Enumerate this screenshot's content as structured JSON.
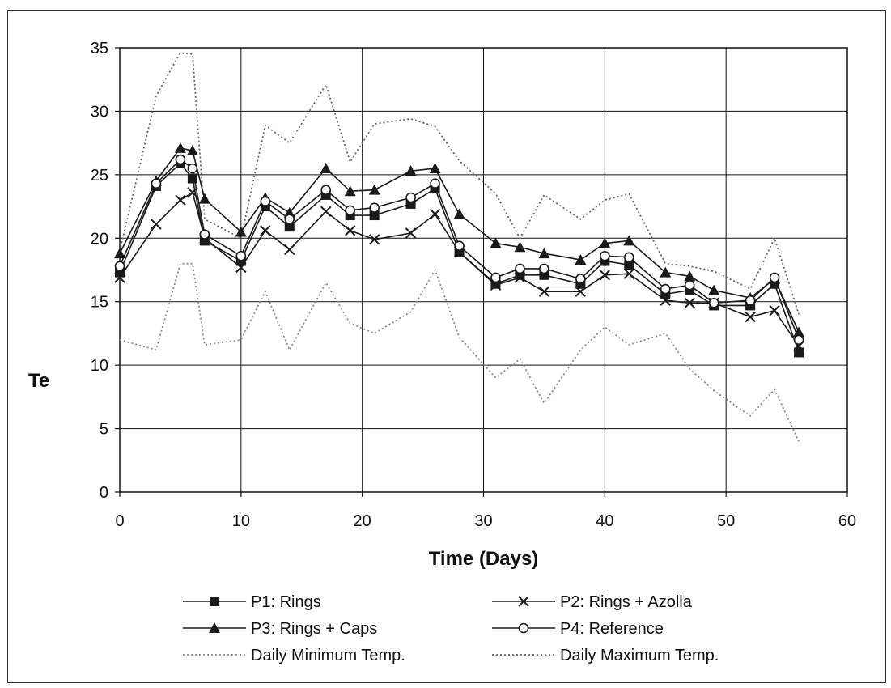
{
  "chart_data": {
    "type": "line",
    "title": "",
    "xlabel": "Time (Days)",
    "ylabel": "Te",
    "xlim": [
      0,
      60
    ],
    "ylim": [
      0,
      35
    ],
    "xticks": [
      0,
      10,
      20,
      30,
      40,
      50,
      60
    ],
    "yticks": [
      0,
      5,
      10,
      15,
      20,
      25,
      30,
      35
    ],
    "grid": true,
    "legend_position": "bottom",
    "series": [
      {
        "name": "P1: Rings",
        "marker": "square",
        "style": "solid",
        "color": "#1a1a1a",
        "x": [
          0,
          3,
          5,
          6,
          7,
          10,
          12,
          14,
          17,
          19,
          21,
          24,
          26,
          28,
          31,
          33,
          35,
          38,
          40,
          42,
          45,
          47,
          49,
          52,
          54,
          56
        ],
        "y": [
          17.3,
          24.1,
          25.9,
          24.7,
          19.8,
          18.2,
          22.5,
          20.9,
          23.4,
          21.8,
          21.8,
          22.7,
          23.9,
          18.9,
          16.4,
          17.1,
          17.1,
          16.4,
          18.2,
          17.9,
          15.6,
          15.9,
          14.7,
          14.7,
          16.4,
          11.0
        ]
      },
      {
        "name": "P2: Rings + Azolla",
        "marker": "x",
        "style": "solid",
        "color": "#1a1a1a",
        "x": [
          0,
          3,
          5,
          6,
          7,
          10,
          12,
          14,
          17,
          19,
          21,
          24,
          26,
          28,
          31,
          33,
          35,
          38,
          40,
          42,
          45,
          47,
          49,
          52,
          54,
          56
        ],
        "y": [
          16.9,
          21.1,
          23.0,
          23.6,
          20.0,
          17.7,
          20.6,
          19.1,
          22.1,
          20.6,
          19.9,
          20.4,
          21.9,
          18.9,
          16.3,
          16.9,
          15.8,
          15.8,
          17.1,
          17.2,
          15.1,
          14.9,
          14.9,
          13.8,
          14.3,
          11.5
        ]
      },
      {
        "name": "P3: Rings + Caps",
        "marker": "triangle",
        "style": "solid",
        "color": "#1a1a1a",
        "x": [
          0,
          3,
          5,
          6,
          7,
          10,
          12,
          14,
          17,
          19,
          21,
          24,
          26,
          28,
          31,
          33,
          35,
          38,
          40,
          42,
          45,
          47,
          49,
          52,
          54,
          56
        ],
        "y": [
          18.8,
          24.5,
          27.1,
          26.9,
          23.1,
          20.5,
          23.2,
          22.0,
          25.5,
          23.7,
          23.8,
          25.3,
          25.5,
          21.9,
          19.6,
          19.3,
          18.8,
          18.3,
          19.6,
          19.8,
          17.3,
          17.0,
          15.9,
          15.3,
          16.8,
          12.6
        ]
      },
      {
        "name": "P4: Reference",
        "marker": "circle",
        "style": "solid",
        "color": "#1a1a1a",
        "x": [
          0,
          3,
          5,
          6,
          7,
          10,
          12,
          14,
          17,
          19,
          21,
          24,
          26,
          28,
          31,
          33,
          35,
          38,
          40,
          42,
          45,
          47,
          49,
          52,
          54,
          56
        ],
        "y": [
          17.8,
          24.3,
          26.2,
          25.5,
          20.3,
          18.6,
          22.9,
          21.5,
          23.8,
          22.2,
          22.4,
          23.2,
          24.3,
          19.4,
          16.9,
          17.6,
          17.6,
          16.8,
          18.6,
          18.5,
          16.0,
          16.3,
          14.9,
          15.1,
          16.9,
          12.0
        ]
      },
      {
        "name": "Daily Minimum Temp.",
        "marker": "none",
        "style": "dotted",
        "color": "#8a8a8a",
        "x": [
          0,
          3,
          5,
          6,
          7,
          10,
          12,
          14,
          17,
          19,
          21,
          24,
          26,
          28,
          31,
          33,
          35,
          38,
          40,
          42,
          45,
          47,
          49,
          52,
          54,
          56
        ],
        "y": [
          12.0,
          11.2,
          18.0,
          18.0,
          11.6,
          12.0,
          15.8,
          11.2,
          16.5,
          13.3,
          12.5,
          14.2,
          17.5,
          12.2,
          9.0,
          10.5,
          7.0,
          11.2,
          13.0,
          11.6,
          12.5,
          9.7,
          8.0,
          6.0,
          8.1,
          4.0
        ]
      },
      {
        "name": "Daily Maximum Temp.",
        "marker": "none",
        "style": "dotted",
        "color": "#666666",
        "x": [
          0,
          3,
          5,
          6,
          7,
          10,
          12,
          14,
          17,
          19,
          21,
          24,
          26,
          28,
          31,
          33,
          35,
          38,
          40,
          42,
          45,
          47,
          49,
          52,
          54,
          56
        ],
        "y": [
          19.0,
          31.2,
          34.6,
          34.5,
          21.5,
          20.0,
          28.9,
          27.5,
          32.1,
          26.0,
          29.0,
          29.4,
          28.8,
          26.1,
          23.5,
          20.0,
          23.4,
          21.5,
          23.0,
          23.5,
          18.0,
          17.8,
          17.4,
          16.0,
          20.0,
          14.0
        ]
      }
    ]
  }
}
